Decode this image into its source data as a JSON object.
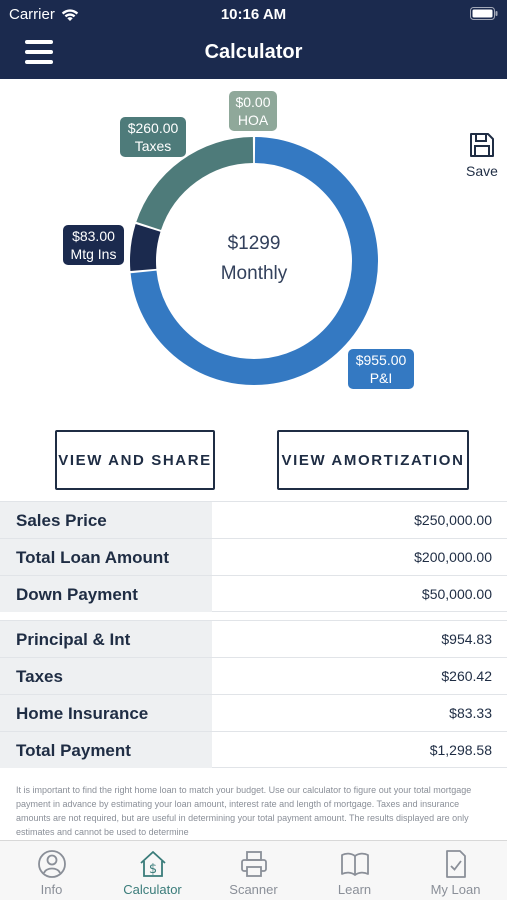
{
  "status_bar": {
    "carrier": "Carrier",
    "time": "10:16 AM"
  },
  "header": {
    "title": "Calculator"
  },
  "chart": {
    "center_amount": "$1299",
    "center_label": "Monthly",
    "save_label": "Save",
    "tags": {
      "hoa": {
        "amount": "$0.00",
        "label": "HOA"
      },
      "taxes": {
        "amount": "$260.00",
        "label": "Taxes"
      },
      "mtg": {
        "amount": "$83.00",
        "label": "Mtg Ins"
      },
      "pi": {
        "amount": "$955.00",
        "label": "P&I"
      }
    },
    "colors": {
      "pi": "#3479c2",
      "mtg": "#1b2a4e",
      "taxes": "#4e7b7a",
      "hoa": "#8fa89a"
    }
  },
  "chart_data": {
    "type": "pie",
    "categories": [
      "P&I",
      "Mtg Ins",
      "Taxes",
      "HOA"
    ],
    "values": [
      955.0,
      83.0,
      260.0,
      0.0
    ]
  },
  "buttons": {
    "view_share": "VIEW AND SHARE",
    "view_amortization": "VIEW AMORTIZATION"
  },
  "summary_rows": [
    {
      "label": "Sales Price",
      "value": "$250,000.00"
    },
    {
      "label": "Total Loan Amount",
      "value": "$200,000.00"
    },
    {
      "label": "Down Payment",
      "value": "$50,000.00"
    }
  ],
  "payment_rows": [
    {
      "label": "Principal & Int",
      "value": "$954.83"
    },
    {
      "label": "Taxes",
      "value": "$260.42"
    },
    {
      "label": "Home Insurance",
      "value": "$83.33"
    },
    {
      "label": "Total Payment",
      "value": "$1,298.58"
    }
  ],
  "disclaimer": "It is important to find the right home loan to match your budget. Use our calculator to figure out your total mortgage payment in advance by estimating your loan amount, interest rate and length of mortgage. Taxes and insurance amounts are not required, but are useful in determining your total payment amount. The results displayed are only estimates and cannot be used to determine",
  "tabs": [
    {
      "label": "Info",
      "icon": "info-person-icon",
      "active": false
    },
    {
      "label": "Calculator",
      "icon": "house-dollar-icon",
      "active": true
    },
    {
      "label": "Scanner",
      "icon": "printer-icon",
      "active": false
    },
    {
      "label": "Learn",
      "icon": "book-icon",
      "active": false
    },
    {
      "label": "My Loan",
      "icon": "document-check-icon",
      "active": false
    }
  ],
  "theme": {
    "header_bg": "#1b2a4e",
    "accent": "#3a7c7a"
  }
}
